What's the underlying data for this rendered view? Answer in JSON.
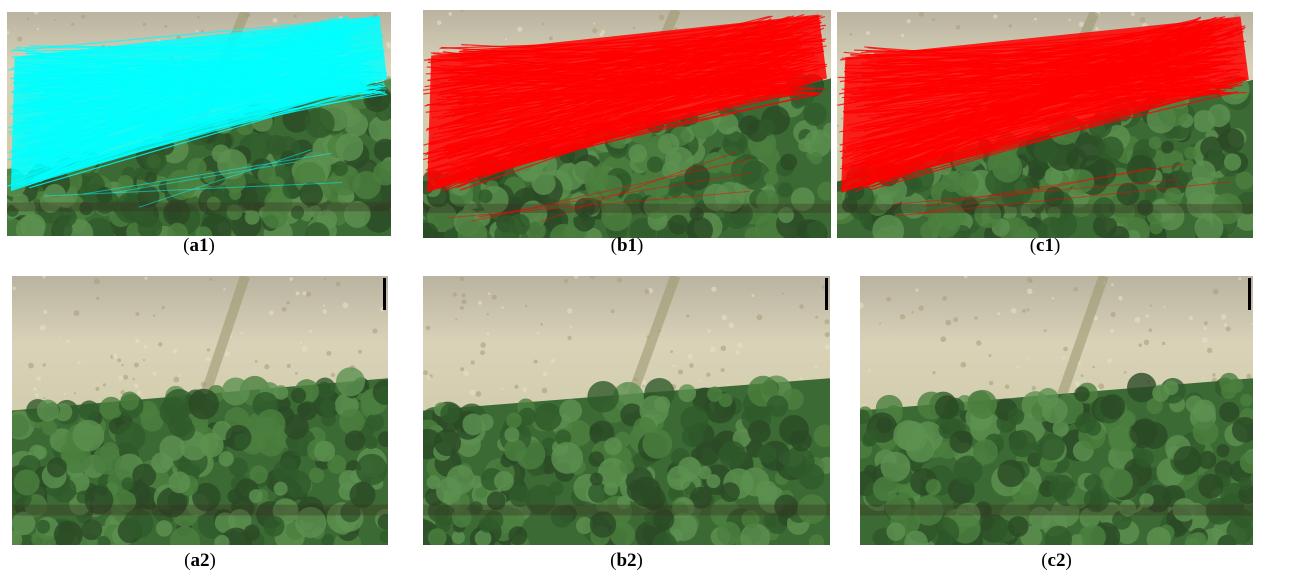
{
  "figure": {
    "panels": [
      {
        "caption": [
          "(",
          "a1",
          ")"
        ],
        "overlay": "#00ffff"
      },
      {
        "caption": [
          "(",
          "b1",
          ")"
        ],
        "overlay": "#ff0000"
      },
      {
        "caption": [
          "(",
          "c1",
          ")"
        ],
        "overlay": "#ff0000"
      },
      {
        "caption": [
          "(",
          "a2",
          ")"
        ]
      },
      {
        "caption": [
          "(",
          "b2",
          ")"
        ]
      },
      {
        "caption": [
          "(",
          "c2",
          ")"
        ]
      }
    ]
  }
}
